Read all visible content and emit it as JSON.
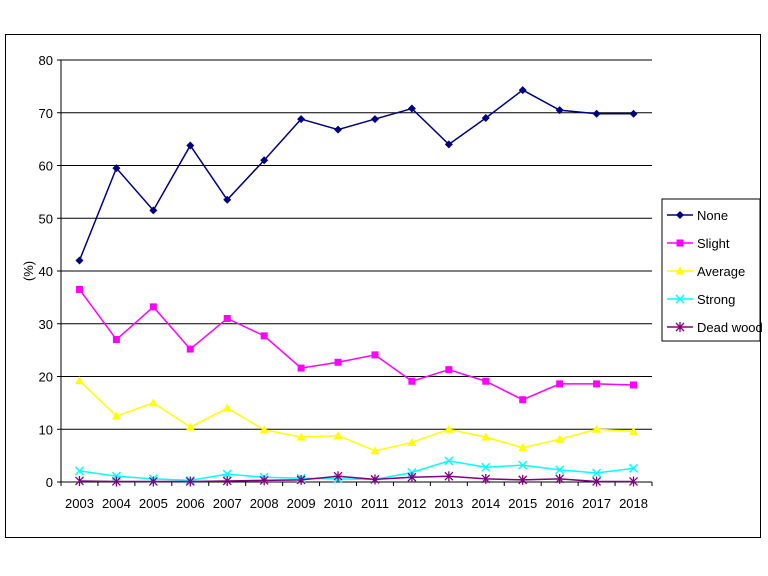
{
  "chart_data": {
    "type": "line",
    "title": "",
    "xlabel": "",
    "ylabel": "(%)",
    "ylim": [
      0,
      80
    ],
    "yticks": [
      0,
      10,
      20,
      30,
      40,
      50,
      60,
      70,
      80
    ],
    "grid": "horizontal",
    "legend_position": "right",
    "x": [
      "2003",
      "2004",
      "2005",
      "2006",
      "2007",
      "2008",
      "2009",
      "2010",
      "2011",
      "2012",
      "2013",
      "2014",
      "2015",
      "2016",
      "2017",
      "2018"
    ],
    "series": [
      {
        "name": "None",
        "color": "#000080",
        "marker": "diamond",
        "values": [
          42,
          59.5,
          51.5,
          63.8,
          53.5,
          61,
          68.8,
          66.8,
          68.8,
          70.8,
          64,
          69,
          74.3,
          70.5,
          69.8,
          69.8
        ]
      },
      {
        "name": "Slight",
        "color": "#ff00ff",
        "marker": "square",
        "values": [
          36.5,
          27,
          33.2,
          25.2,
          31,
          27.7,
          21.6,
          22.7,
          24.1,
          19.1,
          21.3,
          19.1,
          15.6,
          18.6,
          18.6,
          18.4
        ]
      },
      {
        "name": "Average",
        "color": "#ffff00",
        "marker": "triangle",
        "values": [
          19.2,
          12.5,
          15,
          10.4,
          14,
          9.9,
          8.5,
          8.8,
          5.9,
          7.5,
          10,
          8.5,
          6.5,
          8.1,
          10,
          9.6
        ]
      },
      {
        "name": "Strong",
        "color": "#00ffff",
        "marker": "x",
        "values": [
          2.1,
          1.1,
          0.6,
          0.3,
          1.5,
          0.9,
          0.7,
          0.6,
          0.5,
          1.8,
          4,
          2.8,
          3.2,
          2.3,
          1.7,
          2.6
        ]
      },
      {
        "name": "Dead wood",
        "color": "#800080",
        "marker": "star",
        "values": [
          0.2,
          0.1,
          0.1,
          0.1,
          0.2,
          0.3,
          0.4,
          1.1,
          0.5,
          0.9,
          1.1,
          0.6,
          0.4,
          0.6,
          0.1,
          0.1
        ]
      }
    ]
  }
}
